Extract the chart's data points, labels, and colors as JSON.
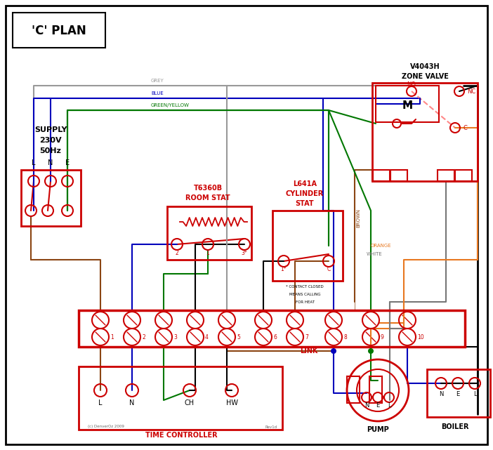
{
  "bg": "#ffffff",
  "red": "#cc0000",
  "blue": "#0000bb",
  "green": "#007700",
  "brown": "#8B4513",
  "grey": "#999999",
  "orange": "#E87820",
  "black": "#000000",
  "pink": "#ff8888",
  "wht": "#777777",
  "title": "'C' PLAN",
  "supply_lines": [
    "SUPPLY",
    "230V",
    "50Hz"
  ],
  "term_labels": [
    "1",
    "2",
    "3",
    "4",
    "5",
    "6",
    "7",
    "8",
    "9",
    "10"
  ],
  "tc_labels": [
    "L",
    "N",
    "CH",
    "HW"
  ],
  "pump_labels": [
    "N",
    "E",
    "L"
  ],
  "boiler_labels": [
    "N",
    "E",
    "L"
  ],
  "copyright": "(c) DenverOz 2009",
  "rev": "Rev1d",
  "link_label": "LINK",
  "grey_label": "GREY",
  "blue_label": "BLUE",
  "gy_label": "GREEN/YELLOW",
  "brown_label": "BROWN",
  "white_label": "WHITE",
  "orange_label": "ORANGE"
}
